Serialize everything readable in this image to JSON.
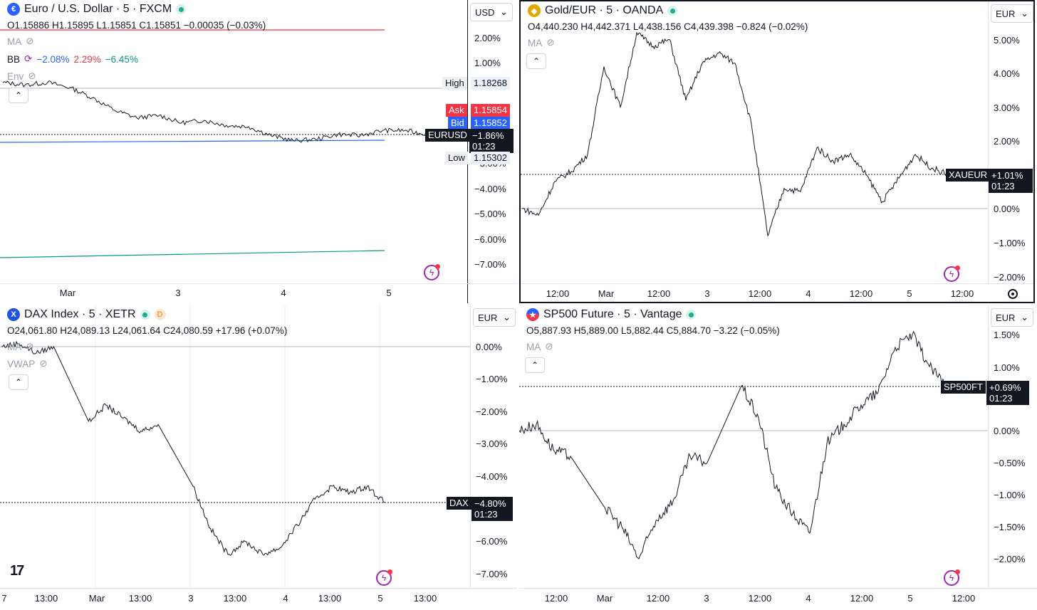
{
  "panes": {
    "eurusd": {
      "symbol": "Euro / U.S. Dollar · 5 · FXCM",
      "ohlc": "O1.15886 H1.15895 L1.15851 C1.15851 −0.00035 (−0.03%)",
      "indicators": {
        "ma": "MA",
        "bb": "BB",
        "bb_values": [
          "−2.08%",
          "2.29%",
          "−6.45%"
        ],
        "env": "Env"
      },
      "currency": "USD",
      "y_ticks": [
        "2.00%",
        "1.00%",
        "−3.00%",
        "−4.00%",
        "−5.00%",
        "−6.00%",
        "−7.00%"
      ],
      "x_ticks": [
        "Mar",
        "3",
        "4",
        "5"
      ],
      "labels": {
        "high_tag": "High",
        "high_value": "1.18268",
        "ask_tag": "Ask",
        "ask_value": "1.15854",
        "bid_tag": "Bid",
        "bid_value": "1.15852",
        "symbol_tag": "EURUSD",
        "change": "−1.86%",
        "countdown": "01:23",
        "low_tag": "Low",
        "low_value": "1.15302"
      },
      "colors": {
        "bb_lower": "#2962ff",
        "bb_upper": "#f23645",
        "bb_basis": "#089981"
      },
      "icon": "euro-dollar-flag-icon"
    },
    "xaueur": {
      "symbol": "Gold/EUR · 5 · OANDA",
      "ohlc": "O4,440.230 H4,442.371 L4,438.156 C4,439.398 −0.824 (−0.02%)",
      "indicators": {
        "ma": "MA"
      },
      "currency": "EUR",
      "y_ticks": [
        "5.00%",
        "4.00%",
        "3.00%",
        "2.00%",
        "0.00%",
        "−1.00%",
        "−2.00%"
      ],
      "x_ticks": [
        "12:00",
        "Mar",
        "12:00",
        "3",
        "12:00",
        "4",
        "12:00",
        "5",
        "12:00"
      ],
      "labels": {
        "symbol_tag": "XAUEUR",
        "change": "+1.01%",
        "countdown": "01:23"
      },
      "icon": "gold-coin-icon"
    },
    "dax": {
      "symbol": "DAX Index · 5 · XETR",
      "ohlc": "O24,061.80 H24,089.13 L24,061.64 C24,080.59 +17.96 (+0.07%)",
      "indicators": {
        "ma": "MA",
        "vwap": "VWAP"
      },
      "delayed": "D",
      "currency": "EUR",
      "y_ticks": [
        "0.00%",
        "−1.00%",
        "−2.00%",
        "−3.00%",
        "−4.00%",
        "−6.00%",
        "−7.00%"
      ],
      "x_ticks": [
        "7",
        "13:00",
        "Mar",
        "13:00",
        "3",
        "13:00",
        "4",
        "13:00",
        "5",
        "13:00"
      ],
      "labels": {
        "symbol_tag": "DAX",
        "change": "−4.80%",
        "countdown": "01:23"
      },
      "icon": "x-circle-icon"
    },
    "sp500": {
      "symbol": "SP500 Future · 5 · Vantage",
      "ohlc": "O5,887.93 H5,889.00 L5,882.44 C5,884.70 −3.22 (−0.05%)",
      "indicators": {
        "ma": "MA"
      },
      "currency": "EUR",
      "y_ticks": [
        "1.50%",
        "1.00%",
        "0.00%",
        "−0.50%",
        "−1.00%",
        "−1.50%",
        "−2.00%"
      ],
      "x_ticks": [
        "12:00",
        "Mar",
        "12:00",
        "3",
        "12:00",
        "4",
        "12:00",
        "5",
        "12:00"
      ],
      "labels": {
        "symbol_tag": "SP500FT",
        "change": "+0.69%",
        "countdown": "01:23"
      },
      "icon": "us-flag-icon"
    }
  },
  "chart_data": [
    {
      "type": "line",
      "series": [
        {
          "name": "EURUSD",
          "values": [
            0.2,
            0.1,
            0.2,
            0.0,
            -0.4,
            -0.9,
            -1.2,
            -1.1,
            -1.4,
            -1.3,
            -1.5,
            -1.55,
            -1.9,
            -2.1,
            -2.05,
            -1.85,
            -1.9,
            -1.7,
            -1.7,
            -1.86
          ]
        }
      ],
      "x_ticks": [
        "Mar",
        "3",
        "4",
        "5"
      ],
      "y_ticks_percent": [
        2.0,
        1.0,
        -3.0,
        -4.0,
        -5.0,
        -6.0,
        -7.0
      ]
    },
    {
      "type": "line",
      "series": [
        {
          "name": "XAUEUR",
          "values": [
            0.0,
            -0.2,
            0.8,
            1.1,
            1.6,
            4.2,
            3.0,
            5.2,
            4.8,
            5.0,
            3.2,
            4.3,
            4.6,
            4.3,
            2.5,
            -0.8,
            0.6,
            0.5,
            1.8,
            1.4,
            1.6,
            1.0,
            0.2,
            0.9,
            1.6,
            1.2,
            1.01
          ]
        }
      ],
      "y_ticks_percent": [
        5.0,
        4.0,
        3.0,
        2.0,
        0.0,
        -1.0,
        -2.0
      ]
    },
    {
      "type": "line",
      "series": [
        {
          "name": "DAX",
          "values": [
            0.0,
            0.1,
            -0.2,
            0.0,
            null,
            -2.3,
            -1.8,
            -2.2,
            -2.6,
            -2.4,
            null,
            -4.3,
            -5.6,
            -6.4,
            -6.0,
            -6.4,
            -6.2,
            -5.5,
            -4.7,
            -4.3,
            -4.5,
            -4.3,
            -4.8
          ]
        }
      ],
      "y_ticks_percent": [
        0.0,
        -1.0,
        -2.0,
        -3.0,
        -4.0,
        -6.0,
        -7.0
      ]
    },
    {
      "type": "line",
      "series": [
        {
          "name": "SP500FT",
          "values": [
            0.0,
            0.1,
            -0.3,
            -0.4,
            null,
            -1.2,
            -1.5,
            -2.0,
            -1.4,
            -1.1,
            -0.4,
            -0.5,
            null,
            0.7,
            0.2,
            -0.9,
            -1.3,
            -1.6,
            -0.2,
            0.1,
            0.4,
            0.6,
            1.3,
            1.5,
            1.0,
            0.69
          ]
        }
      ],
      "y_ticks_percent": [
        1.5,
        1.0,
        0.0,
        -0.5,
        -1.0,
        -1.5,
        -2.0
      ]
    }
  ]
}
